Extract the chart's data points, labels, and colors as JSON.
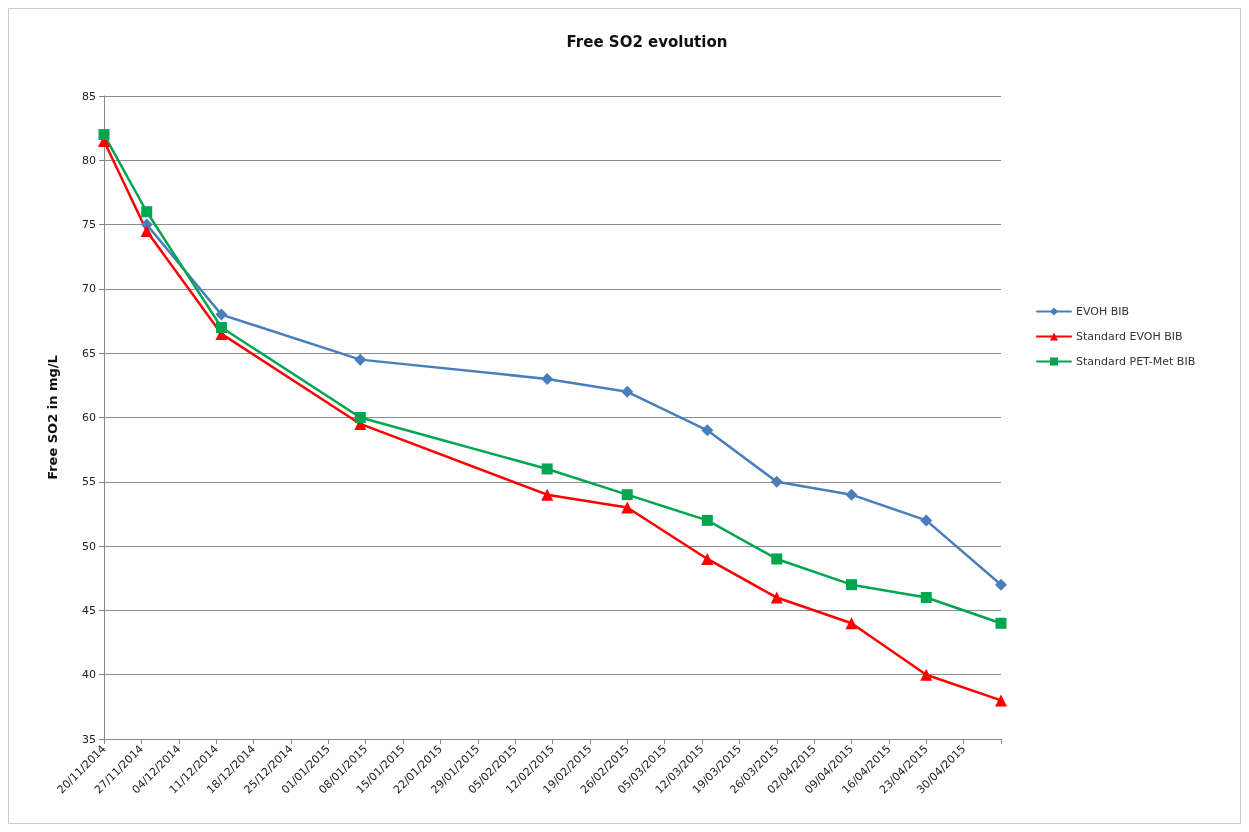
{
  "chart_data": {
    "type": "line",
    "title": "Free SO2 evolution",
    "ylabel": "Free SO2 in mg/L",
    "x": [
      "2014-11-20",
      "2014-11-28",
      "2014-12-12",
      "2015-01-07",
      "2015-02-11",
      "2015-02-26",
      "2015-03-13",
      "2015-03-26",
      "2015-04-09",
      "2015-04-23",
      "2015-05-07"
    ],
    "series": [
      {
        "name": "EVOH BIB",
        "color": "#4a7ebb",
        "marker": "diamond",
        "values": [
          null,
          75,
          68,
          64.5,
          63,
          62,
          59,
          55,
          54,
          52,
          47
        ]
      },
      {
        "name": "Standard EVOH BIB",
        "color": "#ff0000",
        "marker": "triangle",
        "values": [
          81.5,
          74.5,
          66.5,
          59.5,
          54,
          53,
          49,
          46,
          44,
          40,
          38
        ]
      },
      {
        "name": "Standard PET-Met BIB",
        "color": "#00a550",
        "marker": "square",
        "values": [
          82,
          76,
          67,
          60,
          56,
          54,
          52,
          49,
          47,
          46,
          44
        ]
      }
    ],
    "xlim": [
      "2014-11-20",
      "2015-05-07"
    ],
    "xticks": [
      {
        "value": "2014-11-20",
        "label": "20/11/2014"
      },
      {
        "value": "2014-11-27",
        "label": "27/11/2014"
      },
      {
        "value": "2014-12-04",
        "label": "04/12/2014"
      },
      {
        "value": "2014-12-11",
        "label": "11/12/2014"
      },
      {
        "value": "2014-12-18",
        "label": "18/12/2014"
      },
      {
        "value": "2014-12-25",
        "label": "25/12/2014"
      },
      {
        "value": "2015-01-01",
        "label": "01/01/2015"
      },
      {
        "value": "2015-01-08",
        "label": "08/01/2015"
      },
      {
        "value": "2015-01-15",
        "label": "15/01/2015"
      },
      {
        "value": "2015-01-22",
        "label": "22/01/2015"
      },
      {
        "value": "2015-01-29",
        "label": "29/01/2015"
      },
      {
        "value": "2015-02-05",
        "label": "05/02/2015"
      },
      {
        "value": "2015-02-12",
        "label": "12/02/2015"
      },
      {
        "value": "2015-02-19",
        "label": "19/02/2015"
      },
      {
        "value": "2015-02-26",
        "label": "26/02/2015"
      },
      {
        "value": "2015-03-05",
        "label": "05/03/2015"
      },
      {
        "value": "2015-03-12",
        "label": "12/03/2015"
      },
      {
        "value": "2015-03-19",
        "label": "19/03/2015"
      },
      {
        "value": "2015-03-26",
        "label": "26/03/2015"
      },
      {
        "value": "2015-04-02",
        "label": "02/04/2015"
      },
      {
        "value": "2015-04-09",
        "label": "09/04/2015"
      },
      {
        "value": "2015-04-16",
        "label": "16/04/2015"
      },
      {
        "value": "2015-04-23",
        "label": "23/04/2015"
      },
      {
        "value": "2015-04-30",
        "label": "30/04/2015"
      },
      {
        "value": "2015-05-07",
        "label": null
      }
    ],
    "ylim": [
      35,
      85
    ],
    "yticks": [
      35,
      40,
      45,
      50,
      55,
      60,
      65,
      70,
      75,
      80,
      85
    ],
    "grid": "y",
    "legend": "right",
    "line_style": "solid"
  }
}
